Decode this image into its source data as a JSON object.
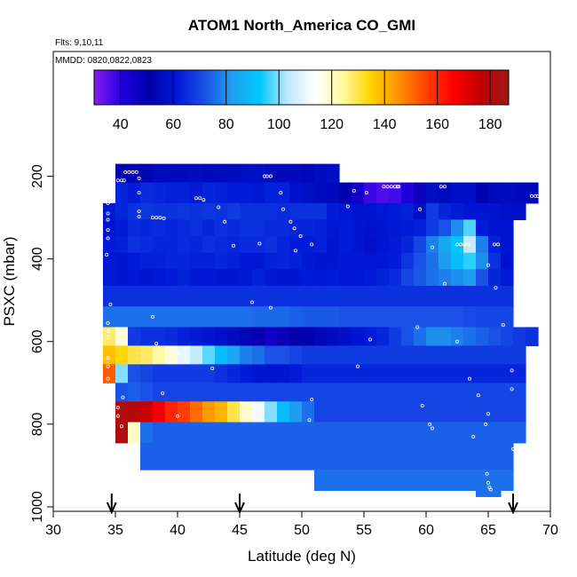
{
  "chart_data": {
    "type": "heatmap",
    "title": "ATOM1 North_America CO_GMI",
    "annotations": [
      "Flts: 9,10,11",
      "MMDD: 0820,0822,0823"
    ],
    "xlabel": "Latitude (deg N)",
    "ylabel": "PSXC (mbar)",
    "xlim": [
      30,
      70
    ],
    "ylim": [
      1000,
      100
    ],
    "y_reversed": true,
    "x_ticks": [
      30,
      35,
      40,
      45,
      50,
      55,
      60,
      65,
      70
    ],
    "y_ticks": [
      200,
      400,
      600,
      800,
      1000
    ],
    "grid": false,
    "colorbar": {
      "range": [
        30,
        187
      ],
      "ticks": [
        40,
        60,
        80,
        100,
        120,
        140,
        160,
        180
      ],
      "colors": [
        "#8a1cf2",
        "#2000e0",
        "#0000a8",
        "#0018d8",
        "#1a50e6",
        "#1ea0f0",
        "#00c8ff",
        "#bfe8ff",
        "#ffffff",
        "#fff9a0",
        "#ffd400",
        "#ff9400",
        "#ff4000",
        "#ff0000",
        "#c00000",
        "#a01818"
      ]
    },
    "marker_arrows_latitude": [
      34.7,
      45,
      67
    ],
    "cell_width_deg": 1,
    "rows": [
      {
        "p_top": 170,
        "p_bot": 215,
        "x_start": 35,
        "values": [
          52,
          53,
          53,
          55,
          55,
          55,
          56,
          55,
          55,
          56,
          57,
          58,
          56,
          55,
          55,
          54,
          56,
          57
        ]
      },
      {
        "p_top": 215,
        "p_bot": 265,
        "x_start": 35,
        "values": [
          64,
          62,
          65,
          64,
          63,
          63,
          62,
          64,
          63,
          62,
          62,
          61,
          63,
          63,
          59,
          57,
          56,
          55,
          52,
          45,
          38,
          36,
          37,
          41,
          47,
          57,
          55,
          58,
          58,
          53,
          55,
          56,
          55,
          54
        ]
      },
      {
        "p_top": 265,
        "p_bot": 305,
        "x_start": 34,
        "values": [
          61,
          64,
          66,
          67,
          66,
          66,
          67,
          66,
          67,
          66,
          68,
          66,
          66,
          66,
          65,
          66,
          66,
          66,
          62,
          61,
          60,
          60,
          61,
          62,
          63,
          58,
          68,
          64,
          62,
          60,
          60,
          60,
          58,
          58
        ]
      },
      {
        "p_top": 305,
        "p_bot": 345,
        "x_start": 34,
        "values": [
          60,
          62,
          65,
          64,
          65,
          64,
          65,
          66,
          64,
          66,
          65,
          66,
          66,
          65,
          65,
          64,
          64,
          63,
          61,
          62,
          60,
          59,
          60,
          61,
          62,
          63,
          68,
          72,
          80,
          97,
          62,
          60,
          60
        ]
      },
      {
        "p_top": 345,
        "p_bot": 385,
        "x_start": 34,
        "values": [
          62,
          63,
          66,
          65,
          64,
          64,
          65,
          64,
          66,
          65,
          64,
          65,
          65,
          66,
          64,
          62,
          62,
          63,
          60,
          62,
          60,
          58,
          60,
          62,
          64,
          70,
          78,
          84,
          92,
          104,
          78,
          63,
          60
        ]
      },
      {
        "p_top": 385,
        "p_bot": 425,
        "x_start": 34,
        "values": [
          61,
          60,
          62,
          63,
          63,
          64,
          64,
          63,
          63,
          64,
          63,
          61,
          61,
          63,
          64,
          63,
          61,
          60,
          60,
          61,
          61,
          61,
          61,
          62,
          67,
          72,
          76,
          82,
          90,
          95,
          80,
          66,
          59
        ]
      },
      {
        "p_top": 425,
        "p_bot": 465,
        "x_start": 34,
        "values": [
          61,
          60,
          61,
          60,
          61,
          62,
          63,
          61,
          61,
          60,
          60,
          61,
          63,
          61,
          60,
          60,
          62,
          61,
          62,
          61,
          61,
          62,
          63,
          65,
          70,
          73,
          76,
          78,
          80,
          82,
          72,
          64,
          62
        ]
      },
      {
        "p_top": 465,
        "p_bot": 515,
        "x_start": 34,
        "values": [
          66,
          66,
          66,
          66,
          66,
          66,
          66,
          66,
          66,
          66,
          66,
          66,
          66,
          66,
          66,
          66,
          66,
          66,
          66,
          66,
          66,
          66,
          66,
          66,
          66,
          66,
          66,
          66,
          66,
          66,
          66,
          66,
          66
        ]
      },
      {
        "p_top": 515,
        "p_bot": 565,
        "x_start": 34,
        "values": [
          76,
          76,
          76,
          76,
          76,
          76,
          76,
          76,
          76,
          76,
          76,
          76,
          75,
          75,
          75,
          74,
          73,
          73,
          73,
          72,
          72,
          72,
          72,
          72,
          72,
          72,
          72,
          72,
          72,
          71,
          70,
          70,
          70
        ]
      },
      {
        "p_top": 565,
        "p_bot": 610,
        "x_start": 34,
        "values": [
          128,
          118,
          68,
          66,
          66,
          65,
          63,
          62,
          60,
          58,
          56,
          54,
          50,
          45,
          48,
          50,
          52,
          54,
          56,
          58,
          60,
          62,
          64,
          68,
          72,
          76,
          80,
          80,
          78,
          76,
          74,
          72,
          70,
          68,
          66
        ]
      },
      {
        "p_top": 610,
        "p_bot": 655,
        "x_start": 34,
        "values": [
          138,
          134,
          130,
          128,
          124,
          118,
          110,
          104,
          98,
          90,
          84,
          78,
          76,
          72,
          72,
          70,
          68,
          68,
          68,
          68,
          68,
          68,
          68,
          68,
          68,
          68,
          68,
          68,
          68,
          68,
          68,
          68,
          68,
          68
        ]
      },
      {
        "p_top": 655,
        "p_bot": 700,
        "x_start": 34,
        "values": [
          152,
          100,
          72,
          70,
          68,
          68,
          68,
          68,
          68,
          66,
          64,
          62,
          60,
          60,
          60,
          62,
          64,
          64,
          64,
          64,
          64,
          64,
          64,
          64,
          64,
          64,
          64,
          64,
          64,
          64,
          64,
          64,
          64,
          64
        ]
      },
      {
        "p_top": 700,
        "p_bot": 745,
        "x_start": 35,
        "values": [
          72,
          74,
          72,
          70,
          70,
          70,
          70,
          70,
          70,
          70,
          70,
          70,
          70,
          70,
          70,
          70,
          70,
          70,
          70,
          70,
          70,
          70,
          70,
          70,
          70,
          70,
          70,
          70,
          70,
          70,
          70,
          70,
          70
        ]
      },
      {
        "p_top": 745,
        "p_bot": 795,
        "x_start": 35,
        "values": [
          182,
          180,
          175,
          168,
          160,
          156,
          150,
          144,
          140,
          130,
          120,
          112,
          100,
          90,
          82,
          76,
          70,
          70,
          70,
          70,
          70,
          70,
          70,
          70,
          70,
          70,
          70,
          70,
          70,
          70,
          70,
          70,
          70
        ]
      },
      {
        "p_top": 795,
        "p_bot": 845,
        "x_start": 35,
        "values": [
          182,
          120,
          76,
          74,
          74,
          74,
          74,
          74,
          74,
          74,
          74,
          74,
          74,
          74,
          74,
          74,
          74,
          74,
          74,
          74,
          74,
          74,
          74,
          74,
          74,
          74,
          74,
          74,
          74,
          74,
          74,
          74,
          74
        ]
      },
      {
        "p_top": 845,
        "p_bot": 910,
        "x_start": 37,
        "values": [
          74,
          74,
          74,
          74,
          74,
          74,
          74,
          74,
          74,
          74,
          74,
          74,
          74,
          74,
          74,
          74,
          74,
          74,
          74,
          74,
          74,
          74,
          74,
          74,
          74,
          74,
          74,
          74,
          74,
          74
        ]
      },
      {
        "p_top": 910,
        "p_bot": 960,
        "x_start": 51,
        "values": [
          76,
          76,
          76,
          76,
          76,
          76,
          76,
          76,
          76,
          76,
          76,
          76,
          76,
          76,
          76,
          76
        ]
      },
      {
        "p_top": 960,
        "p_bot": 975,
        "x_start": 64,
        "values": [
          76,
          76
        ]
      }
    ],
    "sample_points": [
      [
        35.8,
        190
      ],
      [
        36.1,
        190
      ],
      [
        36.4,
        190
      ],
      [
        36.7,
        190
      ],
      [
        36.9,
        205
      ],
      [
        35.2,
        210
      ],
      [
        35.5,
        210
      ],
      [
        35.7,
        210
      ],
      [
        36.9,
        240
      ],
      [
        36.9,
        285
      ],
      [
        36.9,
        298
      ],
      [
        38,
        300
      ],
      [
        38.3,
        300
      ],
      [
        38.6,
        300
      ],
      [
        38.9,
        302
      ],
      [
        41.5,
        253
      ],
      [
        41.8,
        253
      ],
      [
        42.1,
        257
      ],
      [
        43.3,
        275
      ],
      [
        43.8,
        310
      ],
      [
        44.5,
        368
      ],
      [
        46.6,
        363
      ],
      [
        47,
        200
      ],
      [
        47.2,
        200
      ],
      [
        47.5,
        200
      ],
      [
        48.3,
        240
      ],
      [
        48.5,
        280
      ],
      [
        49.1,
        310
      ],
      [
        49.4,
        326
      ],
      [
        49.5,
        380
      ],
      [
        49.9,
        345
      ],
      [
        50.8,
        365
      ],
      [
        53.7,
        273
      ],
      [
        54.2,
        235
      ],
      [
        55.2,
        240
      ],
      [
        55.5,
        211
      ],
      [
        56.6,
        225
      ],
      [
        56.9,
        225
      ],
      [
        57.2,
        225
      ],
      [
        57.5,
        225
      ],
      [
        57.7,
        225
      ],
      [
        57.8,
        225
      ],
      [
        61.2,
        225
      ],
      [
        61.5,
        225
      ],
      [
        59.5,
        280
      ],
      [
        60.5,
        372
      ],
      [
        61.5,
        460
      ],
      [
        62.5,
        365
      ],
      [
        62.8,
        365
      ],
      [
        63.1,
        365
      ],
      [
        63.4,
        365
      ],
      [
        65.5,
        365
      ],
      [
        65.8,
        365
      ],
      [
        65.6,
        470
      ],
      [
        65,
        415
      ],
      [
        68.5,
        248
      ],
      [
        68.8,
        248
      ],
      [
        69,
        248
      ],
      [
        67.2,
        395
      ],
      [
        67.3,
        415
      ],
      [
        69,
        480
      ],
      [
        34.4,
        265
      ],
      [
        34.4,
        290
      ],
      [
        34.4,
        305
      ],
      [
        34.4,
        330
      ],
      [
        34.4,
        350
      ],
      [
        34.3,
        390
      ],
      [
        34.6,
        510
      ],
      [
        34.4,
        555
      ],
      [
        34.4,
        575
      ],
      [
        34.4,
        590
      ],
      [
        34.4,
        640
      ],
      [
        34.4,
        660
      ],
      [
        34.4,
        690
      ],
      [
        34.5,
        720
      ],
      [
        34.5,
        760
      ],
      [
        35.2,
        760
      ],
      [
        35.6,
        735
      ],
      [
        35.2,
        780
      ],
      [
        35.5,
        805
      ],
      [
        38,
        540
      ],
      [
        38.3,
        605
      ],
      [
        38.8,
        725
      ],
      [
        40,
        630
      ],
      [
        40,
        780
      ],
      [
        42.8,
        665
      ],
      [
        46,
        505
      ],
      [
        47.5,
        518
      ],
      [
        50.8,
        740
      ],
      [
        50.6,
        790
      ],
      [
        54.5,
        660
      ],
      [
        55.5,
        595
      ],
      [
        59.3,
        565
      ],
      [
        59.7,
        755
      ],
      [
        62.5,
        600
      ],
      [
        63.5,
        690
      ],
      [
        64.2,
        730
      ],
      [
        65,
        775
      ],
      [
        64.8,
        800
      ],
      [
        63.8,
        830
      ],
      [
        66.2,
        560
      ],
      [
        66.9,
        670
      ],
      [
        66.9,
        715
      ],
      [
        60.3,
        800
      ],
      [
        60.5,
        810
      ],
      [
        64.9,
        920
      ],
      [
        65,
        942
      ],
      [
        65.1,
        953
      ],
      [
        65.2,
        958
      ],
      [
        36.2,
        830
      ],
      [
        67,
        860
      ]
    ]
  }
}
